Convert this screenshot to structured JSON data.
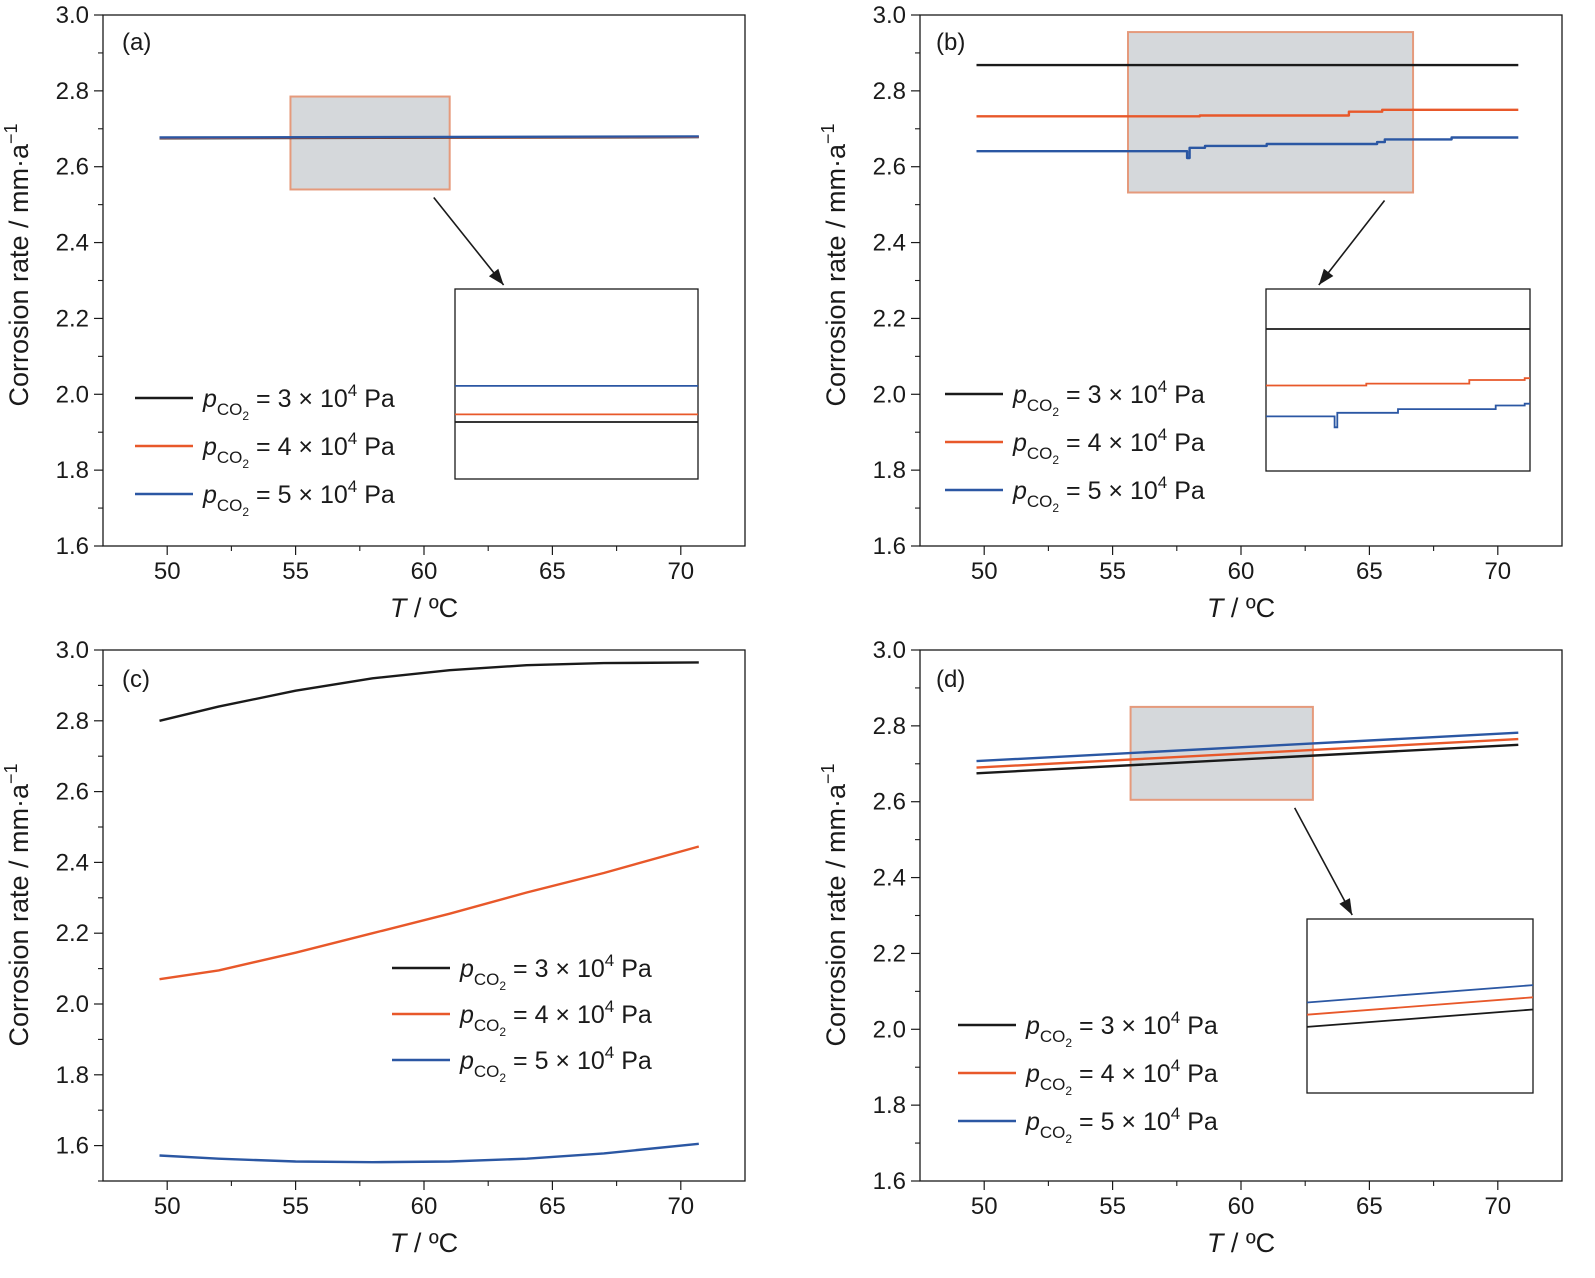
{
  "colors": {
    "black": "#1a1a1a",
    "orange": "#e8582a",
    "blue": "#2b57a3",
    "box_fill": "#d5d8db",
    "box_edge": "#e59a7c"
  },
  "legend_entries": [
    {
      "p": "p",
      "sub": "CO",
      "subsub": "2",
      "rest": " = 3 × 10",
      "sup": "4",
      "unit": " Pa"
    },
    {
      "p": "p",
      "sub": "CO",
      "subsub": "2",
      "rest": " = 4 × 10",
      "sup": "4",
      "unit": " Pa"
    },
    {
      "p": "p",
      "sub": "CO",
      "subsub": "2",
      "rest": " = 5 × 10",
      "sup": "4",
      "unit": " Pa"
    }
  ],
  "axis_text": {
    "xlabel_T": "T",
    "xlabel_rest": " / ºC",
    "ylabel_main": "Corrosion rate / mm·a",
    "ylabel_sup": "−1"
  },
  "chart_data": [
    {
      "type": "line",
      "panel_label": "(a)",
      "xlim": [
        47.5,
        72.5
      ],
      "ylim": [
        1.6,
        3.0
      ],
      "x_ticks": [
        "50",
        "55",
        "60",
        "65",
        "70"
      ],
      "y_ticks": [
        "1.6",
        "1.8",
        "2.0",
        "2.2",
        "2.4",
        "2.6",
        "2.8",
        "3.0"
      ],
      "series": [
        {
          "legend_index": 0,
          "color": "black",
          "x": [
            49.7,
            70.7
          ],
          "y": [
            2.675,
            2.678
          ]
        },
        {
          "legend_index": 1,
          "color": "orange",
          "x": [
            49.7,
            70.7
          ],
          "y": [
            2.676,
            2.679
          ]
        },
        {
          "legend_index": 2,
          "color": "blue",
          "x": [
            49.7,
            70.7
          ],
          "y": [
            2.677,
            2.68
          ]
        }
      ],
      "zoom_box": {
        "x": [
          54.8,
          61.0
        ],
        "y": [
          2.54,
          2.785
        ]
      },
      "inset": {
        "series": [
          {
            "color": "black",
            "y": 0.3
          },
          {
            "color": "orange",
            "y": 0.34
          },
          {
            "color": "blue",
            "y": 0.49
          }
        ]
      }
    },
    {
      "type": "line",
      "panel_label": "(b)",
      "xlim": [
        47.5,
        72.5
      ],
      "ylim": [
        1.6,
        3.0
      ],
      "x_ticks": [
        "50",
        "55",
        "60",
        "65",
        "70"
      ],
      "y_ticks": [
        "1.6",
        "1.8",
        "2.0",
        "2.2",
        "2.4",
        "2.6",
        "2.8",
        "3.0"
      ],
      "series": [
        {
          "legend_index": 0,
          "color": "black",
          "x": [
            49.7,
            70.8
          ],
          "y": [
            2.868,
            2.868
          ]
        },
        {
          "legend_index": 1,
          "color": "orange",
          "x": [
            49.7,
            58.4,
            58.4,
            64.2,
            64.2,
            65.5,
            65.5,
            70.8
          ],
          "y": [
            2.733,
            2.733,
            2.735,
            2.735,
            2.745,
            2.745,
            2.75,
            2.75
          ]
        },
        {
          "legend_index": 2,
          "color": "blue",
          "x": [
            49.7,
            57.9,
            57.9,
            58.0,
            58.0,
            58.6,
            58.6,
            61.0,
            61.0,
            65.3,
            65.3,
            65.6,
            65.6,
            68.2,
            68.2,
            70.8
          ],
          "y": [
            2.641,
            2.641,
            2.623,
            2.623,
            2.65,
            2.65,
            2.655,
            2.655,
            2.66,
            2.66,
            2.665,
            2.665,
            2.672,
            2.672,
            2.677,
            2.677
          ]
        }
      ],
      "zoom_box": {
        "x": [
          55.6,
          66.7
        ],
        "y": [
          2.532,
          2.955
        ]
      },
      "inset": {
        "series": [
          {
            "color": "black",
            "xs": [
              0,
              1
            ],
            "ys": [
              0.78,
              0.78
            ]
          },
          {
            "color": "orange",
            "xs": [
              0,
              0.38,
              0.38,
              0.77,
              0.77,
              0.98,
              0.98,
              1
            ],
            "ys": [
              0.47,
              0.47,
              0.48,
              0.48,
              0.5,
              0.5,
              0.51,
              0.51
            ]
          },
          {
            "color": "blue",
            "xs": [
              0,
              0.26,
              0.26,
              0.27,
              0.27,
              0.5,
              0.5,
              0.87,
              0.87,
              0.98,
              0.98,
              1
            ],
            "ys": [
              0.3,
              0.3,
              0.24,
              0.24,
              0.32,
              0.32,
              0.34,
              0.34,
              0.36,
              0.36,
              0.37,
              0.37
            ]
          }
        ]
      }
    },
    {
      "type": "line",
      "panel_label": "(c)",
      "xlim": [
        47.5,
        72.5
      ],
      "ylim": [
        1.5,
        3.0
      ],
      "x_ticks": [
        "50",
        "55",
        "60",
        "65",
        "70"
      ],
      "y_ticks": [
        "1.6",
        "1.8",
        "2.0",
        "2.2",
        "2.4",
        "2.6",
        "2.8",
        "3.0"
      ],
      "series": [
        {
          "legend_index": 0,
          "color": "black",
          "x": [
            49.7,
            52,
            55,
            58,
            61,
            64,
            67,
            70.7
          ],
          "y": [
            2.8,
            2.84,
            2.885,
            2.92,
            2.943,
            2.957,
            2.963,
            2.965
          ]
        },
        {
          "legend_index": 1,
          "color": "orange",
          "x": [
            49.7,
            52,
            55,
            58,
            61,
            64,
            67,
            70.7
          ],
          "y": [
            2.07,
            2.095,
            2.145,
            2.2,
            2.255,
            2.315,
            2.37,
            2.445
          ]
        },
        {
          "legend_index": 2,
          "color": "blue",
          "x": [
            49.7,
            52,
            55,
            58,
            61,
            64,
            67,
            70.7
          ],
          "y": [
            1.572,
            1.563,
            1.555,
            1.553,
            1.555,
            1.563,
            1.578,
            1.605
          ]
        }
      ]
    },
    {
      "type": "line",
      "panel_label": "(d)",
      "xlim": [
        47.5,
        72.5
      ],
      "ylim": [
        1.6,
        3.0
      ],
      "x_ticks": [
        "50",
        "55",
        "60",
        "65",
        "70"
      ],
      "y_ticks": [
        "1.6",
        "1.8",
        "2.0",
        "2.2",
        "2.4",
        "2.6",
        "2.8",
        "3.0"
      ],
      "series": [
        {
          "legend_index": 0,
          "color": "black",
          "x": [
            49.7,
            70.8
          ],
          "y": [
            2.675,
            2.75
          ]
        },
        {
          "legend_index": 1,
          "color": "orange",
          "x": [
            49.7,
            70.8
          ],
          "y": [
            2.69,
            2.765
          ]
        },
        {
          "legend_index": 2,
          "color": "blue",
          "x": [
            49.7,
            70.8
          ],
          "y": [
            2.707,
            2.782
          ]
        }
      ],
      "zoom_box": {
        "x": [
          55.7,
          62.8
        ],
        "y": [
          2.605,
          2.85
        ]
      },
      "inset": {
        "series": [
          {
            "color": "black",
            "xs": [
              0,
              1
            ],
            "ys": [
              0.38,
              0.48
            ]
          },
          {
            "color": "orange",
            "xs": [
              0,
              1
            ],
            "ys": [
              0.45,
              0.55
            ]
          },
          {
            "color": "blue",
            "xs": [
              0,
              1
            ],
            "ys": [
              0.52,
              0.62
            ]
          }
        ]
      }
    }
  ]
}
